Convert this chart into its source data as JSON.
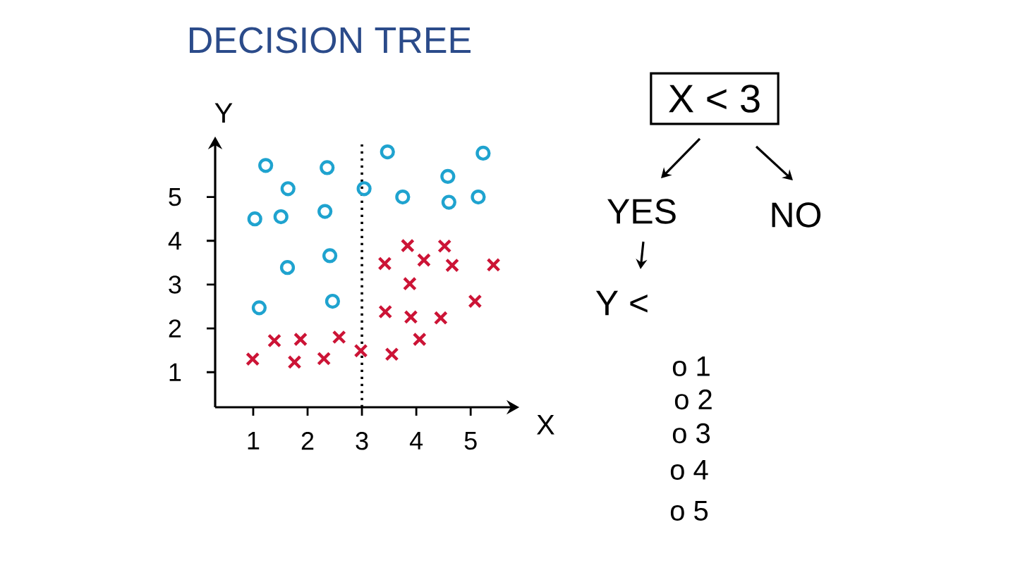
{
  "chart_data": {
    "type": "scatter",
    "title": "DECISION TREE",
    "xlabel": "X",
    "ylabel": "Y",
    "xlim": [
      0.3,
      5.75
    ],
    "ylim": [
      0.2,
      6.2
    ],
    "xticks": [
      1,
      2,
      3,
      4,
      5
    ],
    "yticks": [
      1,
      2,
      3,
      4,
      5
    ],
    "series": [
      {
        "color": "#1fa3cf",
        "marker": "circle",
        "x": [
          1.23,
          2.36,
          1.64,
          1.03,
          1.51,
          2.32,
          1.63,
          2.41,
          1.11,
          2.46,
          3.04,
          3.47,
          5.23,
          4.58,
          3.75,
          4.6,
          5.14
        ],
        "values": [
          5.72,
          5.67,
          5.19,
          4.5,
          4.55,
          4.67,
          3.39,
          3.66,
          2.47,
          2.62,
          5.19,
          6.03,
          6.0,
          5.47,
          5.0,
          4.88,
          5.0
        ]
      },
      {
        "color": "#cc1436",
        "marker": "cross",
        "x": [
          0.99,
          1.39,
          1.87,
          1.76,
          2.3,
          2.58,
          2.98,
          3.43,
          3.55,
          3.88,
          3.9,
          4.45,
          4.06,
          5.08,
          3.84,
          4.52,
          3.42,
          4.14,
          4.66,
          5.42
        ],
        "values": [
          1.3,
          1.72,
          1.75,
          1.23,
          1.31,
          1.8,
          1.49,
          2.38,
          1.41,
          3.02,
          2.26,
          2.24,
          1.75,
          2.62,
          3.89,
          3.88,
          3.48,
          3.56,
          3.44,
          3.45
        ]
      }
    ],
    "ref_lines": [
      {
        "axis": "x",
        "value": 3,
        "color": "#000000",
        "line_style": "dotted"
      }
    ],
    "annotations": [
      "X < 3",
      "YES",
      "NO",
      "Y <",
      "o 1",
      "o 2",
      "o 3",
      "o 4",
      "o 5"
    ]
  }
}
